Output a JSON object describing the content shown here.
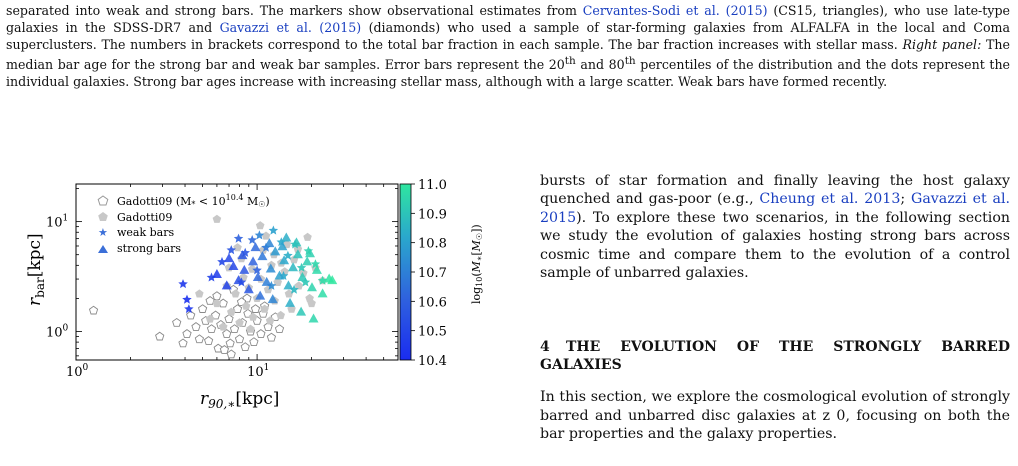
{
  "caption": {
    "line1": "separated into weak and strong bars. The markers show observational estimates from ",
    "cite1": "Cervantes-Sodi et al.",
    "cite1_year": "2015",
    "line1b": " (CS15, triangles), who use late-type galaxies in the SDSS-DR7 and ",
    "cite2": "Gavazzi et al.",
    "cite2_year": "2015",
    "line2b": " (diamonds) who used a sample of star-forming galaxies from ALFALFA in the local and Coma superclusters. The numbers in brackets correspond to the total bar fraction in each sample. The bar fraction increases with stellar mass. ",
    "right_panel_label": "Right panel:",
    "line3": " The median bar age for the strong bar and weak bar samples. Error bars represent the 20",
    "sup_th": "th",
    "line3b": " and 80",
    "line3c": " percentiles of the distribution and the dots represent the individual galaxies. Strong bar ages increase with increasing stellar mass, although with a large scatter. Weak bars have formed recently."
  },
  "body_text": {
    "para1_a": "bursts of star formation and finally leaving the host galaxy quenched and gas-poor (e.g., ",
    "cite3": "Cheung et al. 2013",
    "cite4": "Gavazzi et al. 2015",
    "para1_b": "). To explore these two scenarios, in the following section we study the evolution of galaxies hosting strong bars across cosmic time and compare them to the evolution of a control sample of unbarred galaxies.",
    "section_number": "4",
    "section_title": "THE EVOLUTION OF THE STRONGLY BARRED GALAXIES",
    "para2": "In this section, we explore the cosmological evolution of strongly barred and unbarred disc galaxies at z  0, focusing on both the bar properties and the galaxy properties."
  },
  "chart_data": {
    "type": "scatter",
    "xlabel": "r90,*[kpc]",
    "ylabel": "rbar[kpc]",
    "xscale": "log",
    "yscale": "log",
    "xlim": [
      1.0,
      60
    ],
    "ylim": [
      0.55,
      22
    ],
    "x_ticks": [
      "10^0",
      "10^1"
    ],
    "y_ticks": [
      "10^0",
      "10^1"
    ],
    "legend_position": "top-left",
    "legend": [
      {
        "label": "Gadotti09 (M* < 10^10.4 M☉)",
        "marker": "open-pentagon",
        "color": "#999999"
      },
      {
        "label": "Gadotti09",
        "marker": "filled-pentagon",
        "color": "#c8c8c8"
      },
      {
        "label": "weak bars",
        "marker": "star",
        "color": "#3b6fd8"
      },
      {
        "label": "strong bars",
        "marker": "triangle",
        "color": "#3b6fd8"
      }
    ],
    "colorbar": {
      "label": "log10(M*[M☉])",
      "min": 10.4,
      "max": 11.0,
      "ticks": [
        "11.0",
        "10.9",
        "10.8",
        "10.7",
        "10.6",
        "10.5",
        "10.4"
      ],
      "colors": [
        "#1a2cf0",
        "#2f62de",
        "#2aa8cc",
        "#2fe6a0"
      ]
    },
    "series": [
      {
        "name": "Gadotti09 (M* < 10^10.4 M☉)",
        "marker": "open-pentagon",
        "points": [
          [
            1.25,
            1.55
          ],
          [
            2.9,
            0.9
          ],
          [
            3.6,
            1.2
          ],
          [
            4.3,
            1.4
          ],
          [
            4.1,
            0.95
          ],
          [
            4.6,
            1.1
          ],
          [
            5.0,
            1.6
          ],
          [
            5.2,
            1.25
          ],
          [
            5.4,
            0.82
          ],
          [
            5.6,
            1.05
          ],
          [
            5.9,
            1.4
          ],
          [
            6.1,
            0.7
          ],
          [
            6.3,
            1.15
          ],
          [
            6.5,
            1.8
          ],
          [
            6.8,
            0.95
          ],
          [
            7.0,
            1.3
          ],
          [
            7.2,
            0.62
          ],
          [
            7.5,
            1.05
          ],
          [
            7.8,
            1.6
          ],
          [
            8.0,
            0.85
          ],
          [
            8.3,
            1.2
          ],
          [
            8.6,
            0.72
          ],
          [
            8.9,
            1.45
          ],
          [
            9.2,
            1.0
          ],
          [
            9.6,
            0.8
          ],
          [
            10.0,
            1.25
          ],
          [
            10.5,
            0.95
          ],
          [
            11.0,
            1.7
          ],
          [
            11.5,
            1.1
          ],
          [
            12.0,
            0.88
          ],
          [
            12.6,
            1.35
          ],
          [
            13.3,
            1.05
          ],
          [
            6.0,
            2.1
          ],
          [
            7.4,
            2.4
          ],
          [
            8.8,
            2.0
          ],
          [
            5.5,
            1.9
          ],
          [
            9.8,
            1.6
          ],
          [
            4.8,
            0.85
          ],
          [
            7.1,
            0.78
          ],
          [
            8.2,
            1.85
          ],
          [
            10.8,
            1.45
          ],
          [
            3.9,
            0.78
          ],
          [
            6.6,
            0.68
          ]
        ]
      },
      {
        "name": "Gadotti09",
        "marker": "filled-pentagon",
        "points": [
          [
            4.8,
            2.2
          ],
          [
            5.5,
            1.3
          ],
          [
            6.0,
            1.8
          ],
          [
            6.5,
            1.1
          ],
          [
            6.8,
            2.6
          ],
          [
            7.2,
            1.5
          ],
          [
            7.6,
            2.2
          ],
          [
            8.0,
            1.2
          ],
          [
            8.4,
            3.1
          ],
          [
            8.7,
            1.7
          ],
          [
            9.0,
            2.5
          ],
          [
            9.5,
            1.35
          ],
          [
            10.0,
            2.0
          ],
          [
            10.5,
            3.0
          ],
          [
            11.0,
            1.6
          ],
          [
            11.5,
            2.4
          ],
          [
            12.0,
            4.0
          ],
          [
            12.5,
            1.9
          ],
          [
            13.0,
            2.8
          ],
          [
            13.5,
            1.4
          ],
          [
            14.2,
            3.5
          ],
          [
            15.0,
            2.2
          ],
          [
            16.0,
            4.5
          ],
          [
            17.0,
            2.6
          ],
          [
            18.0,
            3.4
          ],
          [
            19.5,
            2.0
          ],
          [
            21.0,
            3.8
          ],
          [
            23.0,
            2.9
          ],
          [
            7.0,
            3.8
          ],
          [
            8.2,
            4.6
          ],
          [
            9.4,
            3.7
          ],
          [
            10.8,
            5.5
          ],
          [
            12.4,
            5.0
          ],
          [
            14.6,
            6.2
          ],
          [
            16.8,
            5.6
          ],
          [
            19.0,
            7.2
          ],
          [
            11.2,
            7.4
          ],
          [
            6.0,
            10.5
          ],
          [
            10.4,
            9.2
          ],
          [
            7.8,
            5.8
          ],
          [
            13.6,
            4.2
          ],
          [
            9.2,
            1.05
          ],
          [
            11.8,
            1.25
          ],
          [
            15.5,
            1.6
          ],
          [
            20.0,
            1.8
          ]
        ]
      },
      {
        "name": "weak bars",
        "marker": "star",
        "points": [
          [
            3.9,
            2.7,
            10.45
          ],
          [
            4.1,
            1.95,
            10.42
          ],
          [
            4.2,
            1.6,
            10.44
          ],
          [
            5.6,
            3.1,
            10.48
          ],
          [
            6.4,
            4.3,
            10.5
          ],
          [
            7.2,
            5.5,
            10.55
          ],
          [
            7.9,
            7.0,
            10.6
          ],
          [
            8.6,
            5.2,
            10.55
          ],
          [
            9.4,
            6.8,
            10.62
          ],
          [
            10.3,
            7.5,
            10.7
          ],
          [
            11.2,
            5.8,
            10.66
          ],
          [
            12.3,
            8.3,
            10.78
          ],
          [
            13.6,
            6.5,
            10.8
          ],
          [
            14.8,
            4.9,
            10.82
          ],
          [
            16.2,
            6.2,
            10.88
          ],
          [
            17.6,
            3.8,
            10.9
          ],
          [
            19.2,
            5.4,
            10.93
          ],
          [
            21.0,
            4.1,
            10.95
          ],
          [
            23.0,
            2.9,
            10.97
          ],
          [
            8.2,
            2.8,
            10.52
          ],
          [
            10.0,
            3.6,
            10.6
          ],
          [
            12.0,
            2.6,
            10.72
          ],
          [
            14.0,
            3.2,
            10.8
          ],
          [
            16.0,
            2.4,
            10.85
          ],
          [
            18.5,
            2.8,
            10.9
          ]
        ]
      },
      {
        "name": "strong bars",
        "marker": "triangle",
        "points": [
          [
            6.0,
            3.3,
            10.46
          ],
          [
            6.8,
            2.6,
            10.48
          ],
          [
            7.4,
            3.9,
            10.5
          ],
          [
            7.9,
            2.9,
            10.52
          ],
          [
            8.5,
            3.6,
            10.55
          ],
          [
            9.0,
            2.4,
            10.56
          ],
          [
            9.5,
            4.3,
            10.6
          ],
          [
            10.1,
            3.1,
            10.62
          ],
          [
            10.7,
            4.8,
            10.66
          ],
          [
            11.3,
            2.8,
            10.68
          ],
          [
            11.9,
            3.7,
            10.72
          ],
          [
            12.6,
            5.3,
            10.76
          ],
          [
            13.3,
            3.2,
            10.78
          ],
          [
            14.1,
            4.4,
            10.8
          ],
          [
            14.9,
            2.6,
            10.82
          ],
          [
            15.8,
            3.8,
            10.85
          ],
          [
            16.8,
            5.0,
            10.88
          ],
          [
            17.8,
            3.1,
            10.9
          ],
          [
            18.9,
            4.3,
            10.92
          ],
          [
            20.1,
            2.5,
            10.94
          ],
          [
            21.4,
            3.6,
            10.96
          ],
          [
            23.0,
            2.2,
            10.97
          ],
          [
            25.0,
            3.0,
            10.99
          ],
          [
            26.0,
            2.9,
            11.0
          ],
          [
            8.3,
            4.9,
            10.55
          ],
          [
            9.8,
            5.8,
            10.62
          ],
          [
            11.7,
            6.3,
            10.7
          ],
          [
            13.8,
            5.9,
            10.78
          ],
          [
            16.5,
            6.4,
            10.88
          ],
          [
            19.6,
            5.1,
            10.93
          ],
          [
            12.2,
            1.95,
            10.7
          ],
          [
            15.2,
            1.8,
            10.82
          ],
          [
            17.5,
            1.5,
            10.9
          ],
          [
            20.5,
            1.3,
            10.95
          ],
          [
            10.4,
            2.1,
            10.64
          ],
          [
            7.0,
            4.6,
            10.5
          ],
          [
            14.5,
            7.1,
            10.82
          ]
        ]
      }
    ]
  }
}
